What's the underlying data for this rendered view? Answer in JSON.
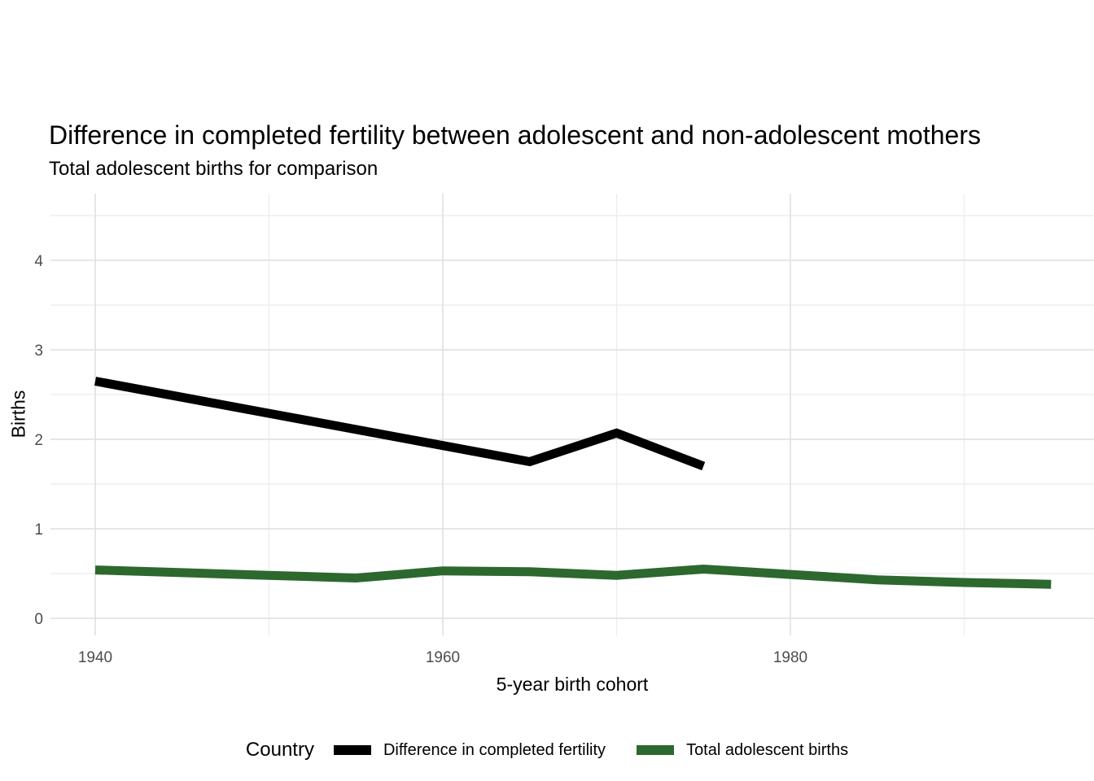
{
  "header": {
    "title": "Difference in completed fertility between adolescent and non-adolescent mothers",
    "subtitle": "Total adolescent births for comparison"
  },
  "colors": {
    "background": "#ffffff",
    "grid_major": "#e3e3e3",
    "grid_minor": "#ebebeb",
    "tick_label": "#4d4d4d",
    "text": "#000000",
    "series_difference": "#000000",
    "series_total": "#2d682e"
  },
  "chart_data": {
    "type": "line",
    "title": "Difference in completed fertility between adolescent and non-adolescent mothers",
    "subtitle": "Total adolescent births for comparison",
    "xlabel": "5-year birth cohort",
    "ylabel": "Births",
    "legend_title": "Country",
    "legend_position": "bottom",
    "grid": true,
    "xlim": [
      1937.2,
      1997.8
    ],
    "ylim": [
      -0.2,
      4.75
    ],
    "x_major_ticks": [
      1940,
      1960,
      1980
    ],
    "x_minor_ticks": [
      1950,
      1970,
      1990
    ],
    "y_major_ticks": [
      0,
      1,
      2,
      3,
      4
    ],
    "y_minor_ticks": [
      0.5,
      1.5,
      2.5,
      3.5,
      4.5
    ],
    "series": [
      {
        "name": "Difference in completed fertility",
        "color": "#000000",
        "x": [
          1940,
          1945,
          1950,
          1955,
          1960,
          1965,
          1970,
          1975
        ],
        "values": [
          2.65,
          2.47,
          2.29,
          2.11,
          1.93,
          1.75,
          2.07,
          1.7
        ]
      },
      {
        "name": "Total adolescent births",
        "color": "#2d682e",
        "x": [
          1940,
          1945,
          1950,
          1955,
          1960,
          1965,
          1970,
          1975,
          1980,
          1985,
          1990,
          1995
        ],
        "values": [
          0.54,
          0.51,
          0.48,
          0.45,
          0.53,
          0.52,
          0.48,
          0.55,
          0.49,
          0.43,
          0.4,
          0.38
        ]
      }
    ]
  }
}
